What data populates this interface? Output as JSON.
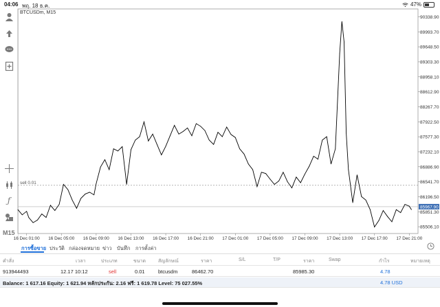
{
  "status_bar": {
    "time": "04:06",
    "date": "พฤ. 18 ธ.ค.",
    "battery": "47%"
  },
  "chart": {
    "symbol": "BTCUSDm, M15",
    "order_line_label": "sell 0.01",
    "current_price": "85967.90",
    "y_ticks": [
      "90338.90",
      "89993.70",
      "89648.50",
      "89303.30",
      "88958.10",
      "88612.90",
      "88267.70",
      "87922.50",
      "87577.30",
      "87232.10",
      "86886.90",
      "86541.70",
      "86196.50",
      "85851.30",
      "85506.10"
    ],
    "x_ticks": [
      "16 Dec 01:00",
      "16 Dec 05:00",
      "16 Dec 09:00",
      "16 Dec 13:00",
      "16 Dec 17:00",
      "16 Dec 21:00",
      "17 Dec 01:00",
      "17 Dec 05:00",
      "17 Dec 09:00",
      "17 Dec 13:00",
      "17 Dec 17:00",
      "17 Dec 21:00"
    ],
    "order_line_price": 86460,
    "current_price_value": 85967.9
  },
  "chart_data": {
    "type": "line",
    "title": "BTCUSDm, M15",
    "xlabel": "",
    "ylabel": "",
    "ylim": [
      85350,
      90520
    ],
    "x_range": [
      "16 Dec 00:00",
      "17 Dec 22:00"
    ],
    "grid": false,
    "series": [
      {
        "name": "BTCUSDm",
        "x": [
          "16 Dec 00:00",
          "16 Dec 00:30",
          "16 Dec 01:00",
          "16 Dec 01:15",
          "16 Dec 01:45",
          "16 Dec 02:15",
          "16 Dec 02:45",
          "16 Dec 03:15",
          "16 Dec 03:45",
          "16 Dec 04:15",
          "16 Dec 04:45",
          "16 Dec 05:15",
          "16 Dec 05:45",
          "16 Dec 06:15",
          "16 Dec 06:45",
          "16 Dec 07:15",
          "16 Dec 07:45",
          "16 Dec 08:15",
          "16 Dec 08:45",
          "16 Dec 09:00",
          "16 Dec 09:30",
          "16 Dec 10:00",
          "16 Dec 10:30",
          "16 Dec 11:00",
          "16 Dec 11:30",
          "16 Dec 12:00",
          "16 Dec 12:30",
          "16 Dec 13:00",
          "16 Dec 13:30",
          "16 Dec 14:00",
          "16 Dec 14:30",
          "16 Dec 15:00",
          "16 Dec 15:30",
          "16 Dec 16:00",
          "16 Dec 16:30",
          "16 Dec 17:00",
          "16 Dec 17:30",
          "16 Dec 18:00",
          "16 Dec 18:30",
          "16 Dec 19:00",
          "16 Dec 19:30",
          "16 Dec 20:00",
          "16 Dec 20:30",
          "16 Dec 21:00",
          "16 Dec 21:30",
          "16 Dec 22:00",
          "16 Dec 22:30",
          "16 Dec 23:00",
          "16 Dec 23:30",
          "17 Dec 00:00",
          "17 Dec 00:30",
          "17 Dec 01:00",
          "17 Dec 01:30",
          "17 Dec 02:00",
          "17 Dec 02:30",
          "17 Dec 03:00",
          "17 Dec 03:30",
          "17 Dec 04:00",
          "17 Dec 04:30",
          "17 Dec 05:00",
          "17 Dec 05:30",
          "17 Dec 06:00",
          "17 Dec 06:30",
          "17 Dec 07:00",
          "17 Dec 07:30",
          "17 Dec 08:00",
          "17 Dec 08:30",
          "17 Dec 09:00",
          "17 Dec 09:30",
          "17 Dec 10:00",
          "17 Dec 10:30",
          "17 Dec 11:00",
          "17 Dec 11:30",
          "17 Dec 12:00",
          "17 Dec 12:30",
          "17 Dec 13:00",
          "17 Dec 13:15",
          "17 Dec 13:30",
          "17 Dec 13:45",
          "17 Dec 14:00",
          "17 Dec 14:30",
          "17 Dec 15:00",
          "17 Dec 15:30",
          "17 Dec 16:00",
          "17 Dec 16:30",
          "17 Dec 17:00",
          "17 Dec 17:30",
          "17 Dec 18:00",
          "17 Dec 18:30",
          "17 Dec 19:00",
          "17 Dec 19:30",
          "17 Dec 20:00",
          "17 Dec 20:30",
          "17 Dec 21:00",
          "17 Dec 21:15"
        ],
        "y": [
          85900,
          85780,
          85860,
          85720,
          85600,
          85660,
          85800,
          85720,
          86000,
          85880,
          86020,
          86480,
          86360,
          86120,
          85930,
          86160,
          86260,
          86300,
          86240,
          86500,
          86880,
          87050,
          86820,
          87300,
          87250,
          87350,
          86480,
          87280,
          87500,
          87580,
          87920,
          87480,
          87640,
          87400,
          87160,
          87360,
          87600,
          87840,
          87640,
          87700,
          87780,
          87600,
          87880,
          87820,
          87720,
          87500,
          87400,
          87680,
          87580,
          87800,
          87630,
          87560,
          87300,
          87180,
          86950,
          86820,
          86430,
          86760,
          86730,
          86600,
          86480,
          86560,
          86760,
          86540,
          86400,
          86650,
          86520,
          86720,
          86900,
          87130,
          87060,
          87500,
          87580,
          86950,
          87300,
          89500,
          90230,
          89760,
          87660,
          86820,
          86060,
          86700,
          86200,
          86120,
          85900,
          85500,
          85650,
          85880,
          85740,
          85620,
          85900,
          85830,
          86020,
          85980,
          85900
        ]
      }
    ]
  },
  "tabs": [
    "การซื้อขาย",
    "ประวัติ",
    "กล่องจดหมาย",
    "ข่าว",
    "บันทึก",
    "การตั้งค่า"
  ],
  "table": {
    "headers": [
      "คำสั่ง",
      "เวลา",
      "ประเภท",
      "ขนาด",
      "สัญลักษณ์",
      "ราคา",
      "S/L",
      "T/P",
      "ราคา",
      "Swap",
      "กำไร",
      "หมายเหตุ"
    ],
    "row": [
      "913944493",
      "12.17 10:12",
      "sell",
      "0.01",
      "btcusdm",
      "86462.70",
      "",
      "",
      "85985.30",
      "",
      "4.78",
      ""
    ]
  },
  "balance": {
    "text": "Balance: 1 617.16 Equity: 1 621.94 หลักประกัน: 2.16 ฟรี: 1 619.78 Level: 75 027.55%",
    "profit": "4.78  USD"
  },
  "colors": {
    "accent": "#1e6fd9",
    "sell": "#e03131",
    "line": "#000000",
    "price_tag": "#3d6fb5"
  }
}
